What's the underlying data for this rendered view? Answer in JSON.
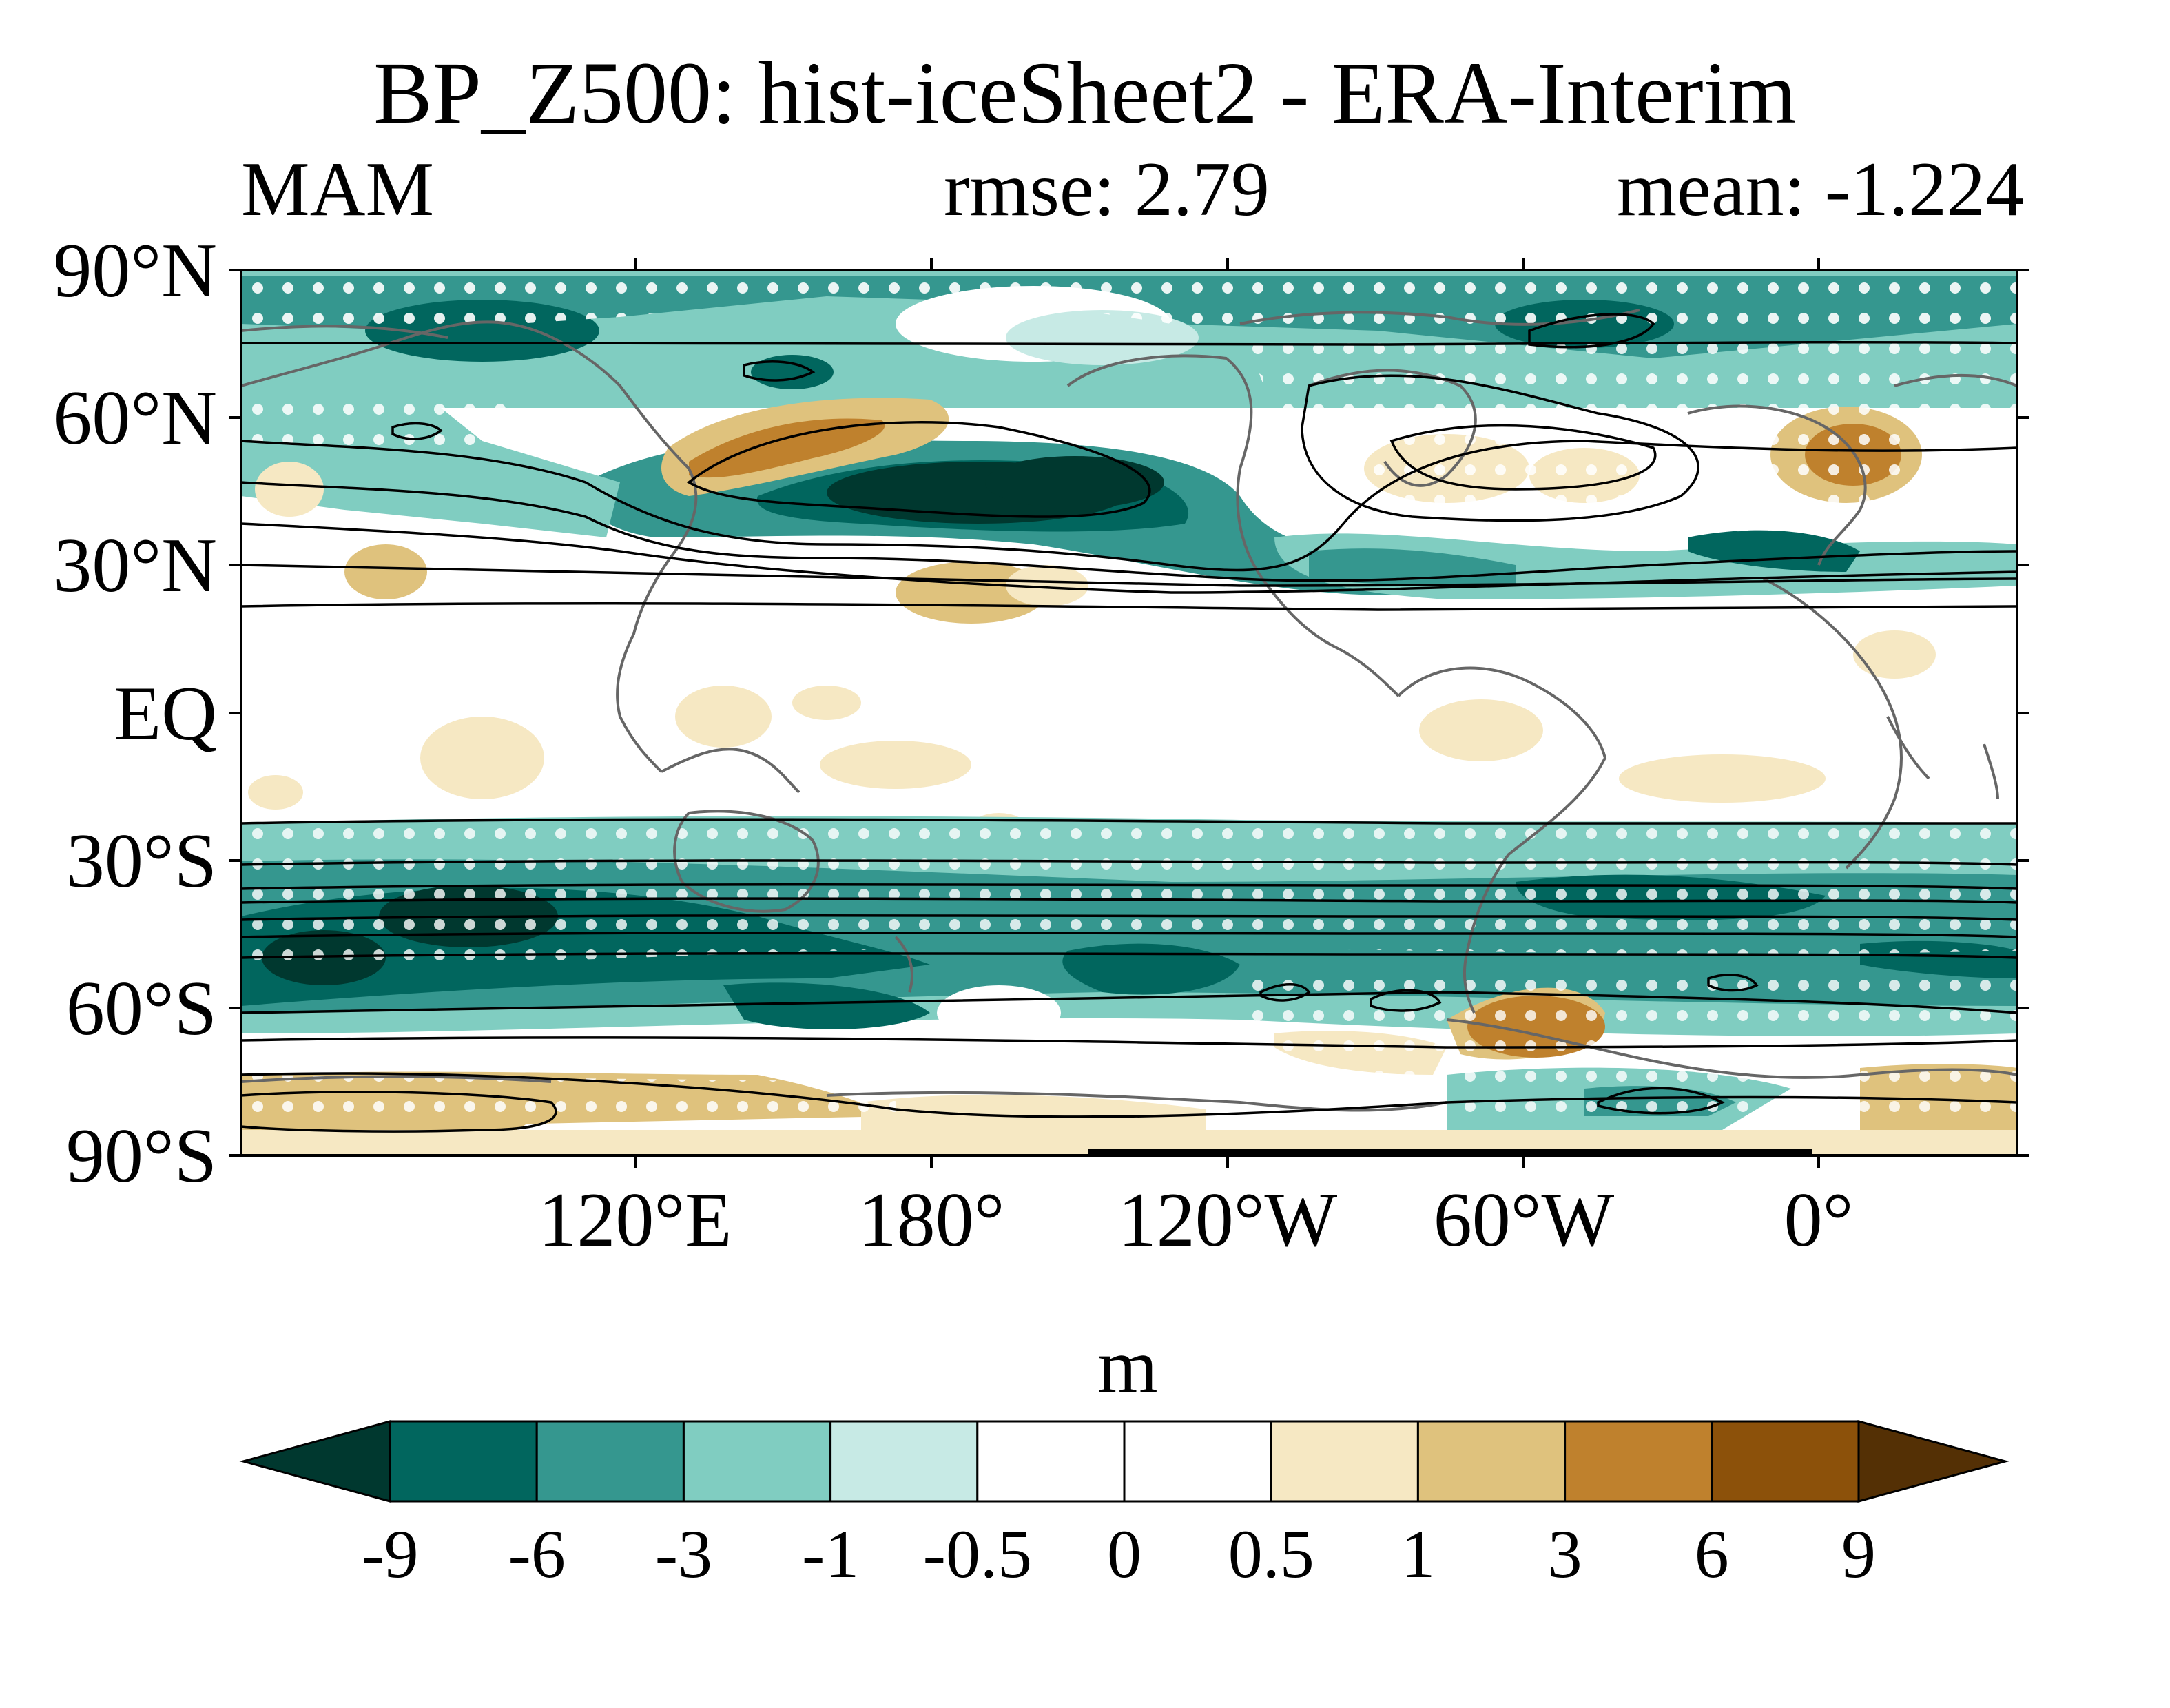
{
  "title": "BP_Z500: hist-iceSheet2 - ERA-Interim",
  "season": "MAM",
  "rmse": "rmse: 2.79",
  "mean": "mean: -1.224",
  "map": {
    "lat_labels": [
      "90°N",
      "60°N",
      "30°N",
      "EQ",
      "30°S",
      "60°S",
      "90°S"
    ],
    "lon_labels": [
      "120°E",
      "180°",
      "120°W",
      "60°W",
      "0°"
    ]
  },
  "colorbar": {
    "units": "m",
    "levels": [
      "-9",
      "-6",
      "-3",
      "-1",
      "-0.5",
      "0",
      "0.5",
      "1",
      "3",
      "6",
      "9"
    ],
    "colors": [
      "#00382f",
      "#01665e",
      "#35978f",
      "#80cdc1",
      "#c7eae5",
      "#ffffff",
      "#ffffff",
      "#f6e8c3",
      "#dfc27d",
      "#bf812d",
      "#8c510a",
      "#543005"
    ]
  }
}
